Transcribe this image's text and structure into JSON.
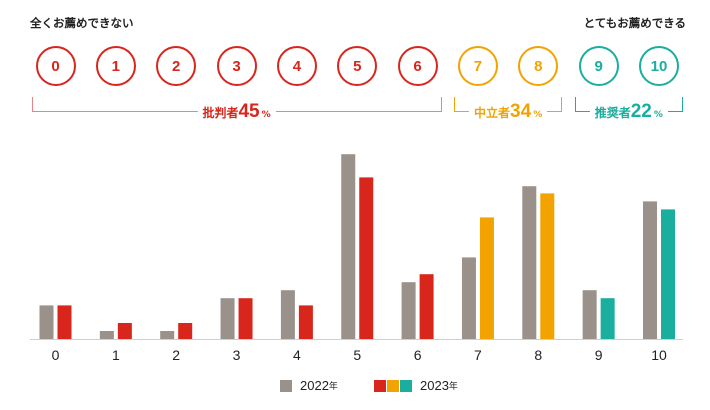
{
  "header": {
    "left_label": "全くお薦めできない",
    "right_label": "とてもお薦めできる"
  },
  "groups": [
    {
      "label": "批判者",
      "percent": "45",
      "unit": "%",
      "color": "#e9838a",
      "text_color": "#d9261c"
    },
    {
      "label": "中立者",
      "percent": "34",
      "unit": "%",
      "color": "#f2a300",
      "text_color": "#f2a300"
    },
    {
      "label": "推奨者",
      "percent": "22",
      "unit": "%",
      "color": "#1aae9f",
      "text_color": "#1aae9f"
    }
  ],
  "colors": {
    "detractor": "#d9261c",
    "passive": "#f2a300",
    "promoter": "#1aae9f",
    "prior_year": "#9a918a",
    "axis": "#cfcfcf"
  },
  "legend": {
    "series_2022": "2022",
    "series_2023": "2023",
    "suffix": "年"
  },
  "chart_data": {
    "type": "bar",
    "categories": [
      "0",
      "1",
      "2",
      "3",
      "4",
      "5",
      "6",
      "7",
      "8",
      "9",
      "10"
    ],
    "series": [
      {
        "name": "2022年",
        "values": [
          4.2,
          1.0,
          1.0,
          5.1,
          6.1,
          23.1,
          7.1,
          10.2,
          19.1,
          6.1,
          17.2
        ]
      },
      {
        "name": "2023年",
        "values": [
          4.2,
          2.0,
          2.0,
          5.1,
          4.2,
          20.2,
          8.1,
          15.2,
          18.2,
          5.1,
          16.2
        ]
      }
    ],
    "ylim": [
      0,
      24
    ],
    "xlabel": "",
    "ylabel": ""
  }
}
